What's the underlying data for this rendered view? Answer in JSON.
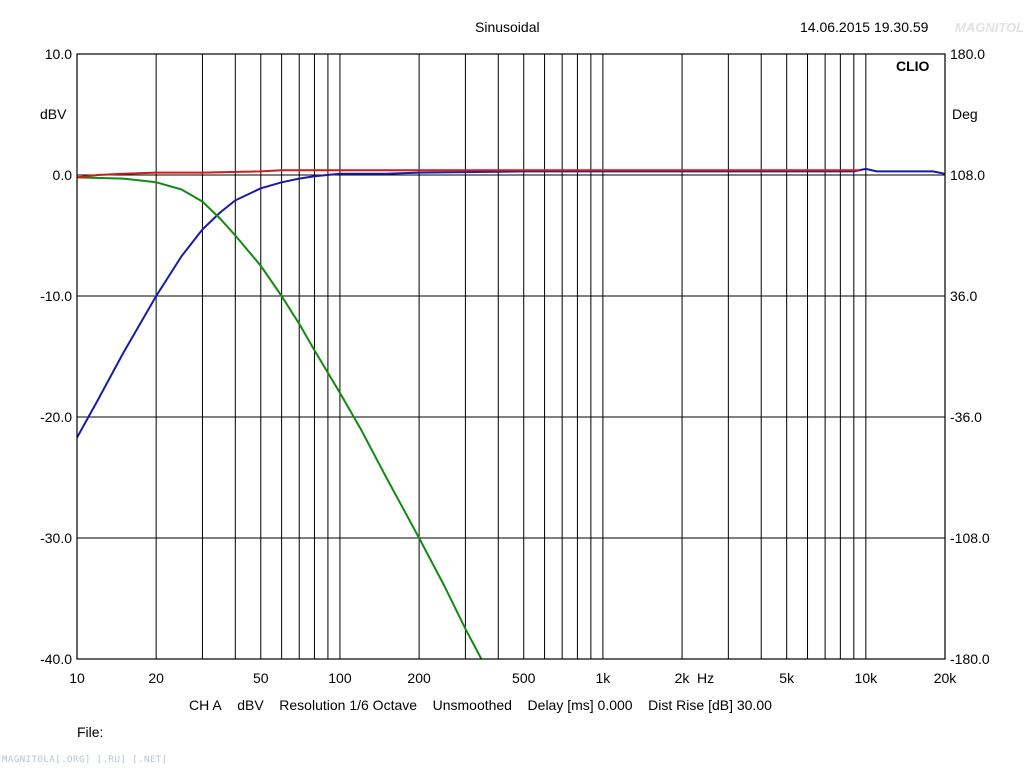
{
  "header": {
    "title": "Sinusoidal",
    "timestamp": "14.06.2015 19.30.59",
    "brand": "CLIO"
  },
  "footer": {
    "info": {
      "channel": "CH A",
      "unit": "dBV",
      "resolution": "Resolution 1/6 Octave",
      "smoothing": "Unsmoothed",
      "delay": "Delay [ms] 0.000",
      "dist_rise": "Dist Rise [dB] 30.00"
    },
    "file_label": "File:"
  },
  "watermark": "MAGNITOLA[.ORG] [.RU] [.NET]",
  "logo_text": "MAGNITOLA",
  "colors": {
    "grid": "#000000",
    "blue_trace": "#1a1aa8",
    "green_trace": "#138a13",
    "red_trace": "#d11a1a"
  },
  "chart_data": {
    "type": "line",
    "title": "Sinusoidal",
    "xscale": "log",
    "xlim": [
      10,
      20000
    ],
    "ylim": [
      -40,
      10
    ],
    "y2lim": [
      -180,
      180
    ],
    "ylabel": "dBV",
    "y2label": "Deg",
    "xunit": "Hz",
    "x_ticks": [
      {
        "value": 10,
        "label": "10"
      },
      {
        "value": 20,
        "label": "20"
      },
      {
        "value": 50,
        "label": "50"
      },
      {
        "value": 100,
        "label": "100"
      },
      {
        "value": 200,
        "label": "200"
      },
      {
        "value": 500,
        "label": "500"
      },
      {
        "value": 1000,
        "label": "1k"
      },
      {
        "value": 2000,
        "label": "2k"
      },
      {
        "value": 5000,
        "label": "5k"
      },
      {
        "value": 10000,
        "label": "10k"
      },
      {
        "value": 20000,
        "label": "20k"
      }
    ],
    "y_ticks": [
      {
        "value": 10,
        "label": "10.0"
      },
      {
        "value": 0,
        "label": "0.0"
      },
      {
        "value": -10,
        "label": "-10.0"
      },
      {
        "value": -20,
        "label": "-20.0"
      },
      {
        "value": -30,
        "label": "-30.0"
      },
      {
        "value": -40,
        "label": "-40.0"
      }
    ],
    "y2_ticks": [
      {
        "value": 180,
        "label": "180.0"
      },
      {
        "value": 108,
        "label": "108.0"
      },
      {
        "value": 36,
        "label": "36.0"
      },
      {
        "value": -36,
        "label": "-36.0"
      },
      {
        "value": -108,
        "label": "-108.0"
      },
      {
        "value": -180,
        "label": "-180.0"
      }
    ],
    "grid": true,
    "series": [
      {
        "color": "#1a1aa8",
        "points": [
          [
            10,
            -21.7
          ],
          [
            12,
            -18.6
          ],
          [
            15,
            -14.7
          ],
          [
            20,
            -10.0
          ],
          [
            25,
            -6.7
          ],
          [
            30,
            -4.5
          ],
          [
            35,
            -3.1
          ],
          [
            40,
            -2.1
          ],
          [
            50,
            -1.1
          ],
          [
            60,
            -0.6
          ],
          [
            70,
            -0.3
          ],
          [
            80,
            -0.1
          ],
          [
            100,
            0.1
          ],
          [
            150,
            0.1
          ],
          [
            200,
            0.2
          ],
          [
            500,
            0.3
          ],
          [
            1000,
            0.3
          ],
          [
            2000,
            0.3
          ],
          [
            5000,
            0.3
          ],
          [
            9000,
            0.3
          ],
          [
            10000,
            0.5
          ],
          [
            11000,
            0.3
          ],
          [
            15000,
            0.3
          ],
          [
            18000,
            0.3
          ],
          [
            20000,
            0.1
          ]
        ]
      },
      {
        "color": "#138a13",
        "points": [
          [
            10,
            -0.2
          ],
          [
            15,
            -0.3
          ],
          [
            20,
            -0.6
          ],
          [
            25,
            -1.2
          ],
          [
            30,
            -2.2
          ],
          [
            35,
            -3.6
          ],
          [
            40,
            -5.0
          ],
          [
            50,
            -7.5
          ],
          [
            60,
            -10.0
          ],
          [
            70,
            -12.3
          ],
          [
            80,
            -14.5
          ],
          [
            100,
            -18.0
          ],
          [
            120,
            -21.0
          ],
          [
            150,
            -25.0
          ],
          [
            200,
            -30.0
          ],
          [
            250,
            -34.0
          ],
          [
            300,
            -37.5
          ],
          [
            345,
            -40.0
          ]
        ]
      },
      {
        "color": "#d11a1a",
        "points": [
          [
            10,
            -0.2
          ],
          [
            12,
            0.0
          ],
          [
            15,
            0.1
          ],
          [
            20,
            0.2
          ],
          [
            30,
            0.2
          ],
          [
            50,
            0.3
          ],
          [
            60,
            0.4
          ],
          [
            100,
            0.4
          ],
          [
            200,
            0.4
          ],
          [
            500,
            0.4
          ],
          [
            1000,
            0.4
          ],
          [
            2000,
            0.4
          ],
          [
            5000,
            0.4
          ],
          [
            8000,
            0.4
          ],
          [
            9500,
            0.4
          ]
        ]
      }
    ]
  }
}
